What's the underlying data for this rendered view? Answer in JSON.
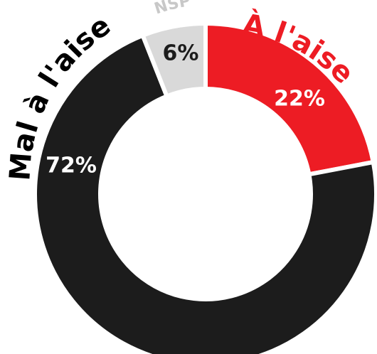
{
  "chart_data": {
    "type": "pie",
    "variant": "donut",
    "slices": [
      {
        "label": "À l'aise",
        "value": 22,
        "value_label": "22%",
        "color": "#ed1c24",
        "value_color": "#ffffff"
      },
      {
        "label": "Mal à l'aise",
        "value": 72,
        "value_label": "72%",
        "color": "#1c1c1c",
        "value_color": "#ffffff"
      },
      {
        "label": "NSP",
        "value": 6,
        "value_label": "6%",
        "color": "#d9d9d9",
        "value_color": "#1c1c1c"
      }
    ],
    "start_angle_deg": 0,
    "direction": "clockwise",
    "legend": "none"
  }
}
